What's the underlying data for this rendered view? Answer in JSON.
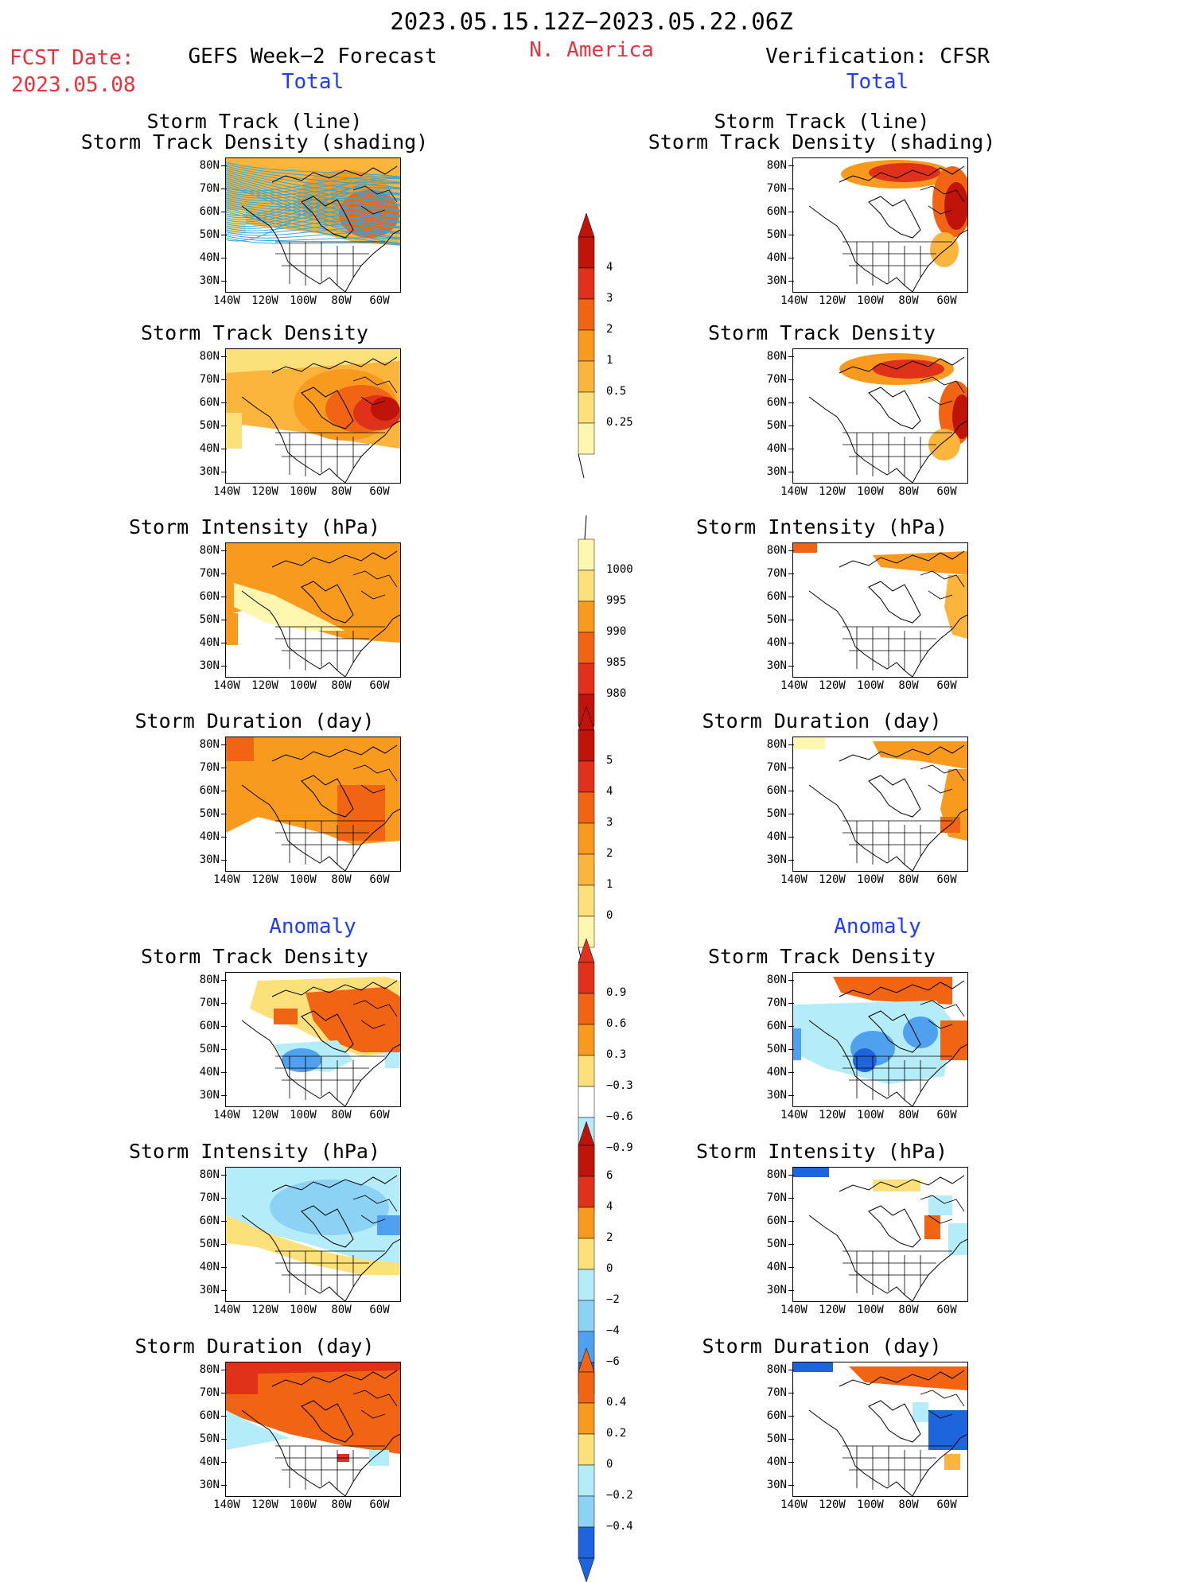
{
  "header": {
    "period": "2023.05.15.12Z−2023.05.22.06Z",
    "region": "N. America",
    "fcst_label": "FCST Date:",
    "fcst_date": "2023.05.08",
    "left_title": "GEFS Week−2 Forecast",
    "right_title": "Verification: CFSR",
    "total_left": "Total",
    "total_right": "Total",
    "anomaly_left": "Anomaly",
    "anomaly_right": "Anomaly"
  },
  "axes": {
    "lat_labels": [
      "80N",
      "70N",
      "60N",
      "50N",
      "40N",
      "30N"
    ],
    "lon_labels": [
      "140W",
      "120W",
      "100W",
      "80W",
      "60W"
    ]
  },
  "panels": {
    "track_line_l1": "Storm Track (line)",
    "track_line_l2": "Storm Track Density (shading)",
    "track_density": "Storm Track Density",
    "intensity": "Storm Intensity (hPa)",
    "duration": "Storm Duration (day)"
  },
  "colorbars": {
    "density_total": [
      "4",
      "3",
      "2",
      "1",
      "0.5",
      "0.25"
    ],
    "intensity_total": [
      "1000",
      "995",
      "990",
      "985",
      "980"
    ],
    "duration_total": [
      "5",
      "4",
      "3",
      "2",
      "1",
      "0"
    ],
    "density_anom": [
      "0.9",
      "0.6",
      "0.3",
      "−0.3",
      "−0.6",
      "−0.9"
    ],
    "intensity_anom": [
      "6",
      "4",
      "2",
      "0",
      "−2",
      "−4",
      "−6"
    ],
    "duration_anom": [
      "0.4",
      "0.2",
      "0",
      "−0.2",
      "−0.4"
    ]
  },
  "colors": {
    "yellow_light": "#fff7b0",
    "yellow": "#fce07a",
    "orange_light": "#fbb43c",
    "orange": "#f89a1e",
    "orange_dark": "#f06414",
    "red": "#e0321a",
    "red_dark": "#c0140a",
    "blue_light": "#b4ecfa",
    "blue_mid": "#8cd2f5",
    "blue": "#50a0f0",
    "blue_dark": "#1e64dc",
    "track_line": "#30a8e0"
  }
}
